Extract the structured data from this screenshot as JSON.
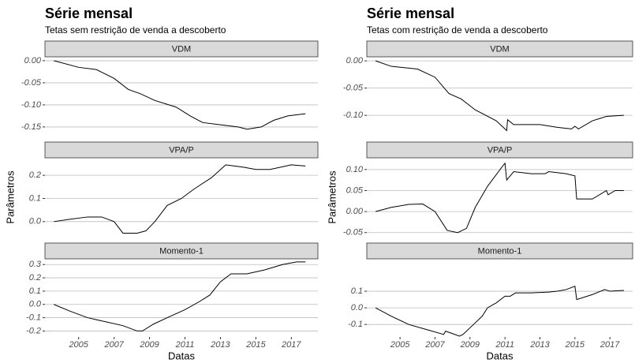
{
  "chart_data": [
    {
      "type": "line",
      "title": "Série mensal",
      "subtitle": "Tetas sem restrição de venda a descoberto",
      "xlabel": "Datas",
      "ylabel": "Parâmetros",
      "color": "#000000",
      "grid": true,
      "xlim": [
        2003.1,
        2018.5
      ],
      "xticks": [
        2005,
        2007,
        2009,
        2011,
        2013,
        2015,
        2017
      ],
      "facets": [
        {
          "title": "VDM",
          "ylim": [
            -0.168,
            0.007
          ],
          "yticks": [
            {
              "value": 0,
              "label": "0.00"
            },
            -0.05,
            {
              "value": -0.1,
              "label": "-0.10"
            },
            -0.15
          ],
          "x": [
            2003.6,
            2005,
            2006,
            2007,
            2007.8,
            2008.5,
            2009.3,
            2010.5,
            2011.3,
            2012,
            2013,
            2014,
            2014.5,
            2015.3,
            2016,
            2016.8,
            2017.8
          ],
          "values": [
            0,
            -0.015,
            -0.02,
            -0.04,
            -0.065,
            -0.075,
            -0.09,
            -0.105,
            -0.125,
            -0.14,
            -0.145,
            -0.15,
            -0.155,
            -0.15,
            -0.135,
            -0.125,
            -0.12
          ]
        },
        {
          "title": "VPA/P",
          "ylim": [
            -0.062,
            0.272
          ],
          "yticks": [
            {
              "value": 0,
              "label": "0.0"
            },
            0.1,
            0.2
          ],
          "x": [
            2003.6,
            2004.5,
            2005.5,
            2006.3,
            2007,
            2007.5,
            2008.3,
            2008.8,
            2009.3,
            2010,
            2010.8,
            2011.5,
            2012.5,
            2013.3,
            2014.3,
            2015,
            2015.8,
            2017,
            2017.8
          ],
          "values": [
            0,
            0.01,
            0.02,
            0.02,
            0,
            -0.05,
            -0.05,
            -0.04,
            0,
            0.07,
            0.1,
            0.14,
            0.19,
            0.245,
            0.235,
            0.225,
            0.225,
            0.245,
            0.24
          ]
        },
        {
          "title": "Momento-1",
          "ylim": [
            -0.245,
            0.337
          ],
          "yticks": [
            -0.2,
            -0.1,
            {
              "value": 0,
              "label": "0.0"
            },
            0.1,
            0.2,
            0.3
          ],
          "x": [
            2003.6,
            2004.5,
            2005.5,
            2006.5,
            2007.5,
            2008.3,
            2008.6,
            2009.2,
            2010,
            2011,
            2011.8,
            2012.4,
            2013,
            2013.6,
            2014.5,
            2015.5,
            2016.5,
            2017.3,
            2017.8
          ],
          "values": [
            0,
            -0.05,
            -0.1,
            -0.13,
            -0.16,
            -0.2,
            -0.2,
            -0.15,
            -0.1,
            -0.04,
            0.02,
            0.07,
            0.17,
            0.23,
            0.23,
            0.26,
            0.3,
            0.32,
            0.32
          ]
        }
      ]
    },
    {
      "type": "line",
      "title": "Série mensal",
      "subtitle": "Tetas com restrição de venda a descoberto",
      "xlabel": "Datas",
      "ylabel": "Parâmetros",
      "color": "#000000",
      "grid": true,
      "xlim": [
        2003.1,
        2018.3
      ],
      "xticks": [
        2005,
        2007,
        2009,
        2011,
        2013,
        2015,
        2017
      ],
      "facets": [
        {
          "title": "VDM",
          "ylim": [
            -0.136,
            0.006
          ],
          "yticks": [
            {
              "value": 0,
              "label": "0.00"
            },
            -0.05,
            {
              "value": -0.1,
              "label": "-0.10"
            }
          ],
          "x": [
            2003.6,
            2004.5,
            2006,
            2007,
            2007.8,
            2008.5,
            2009.3,
            2010.5,
            2011,
            2011.1,
            2011.15,
            2011.5,
            2013,
            2014,
            2014.8,
            2015,
            2015.2,
            2016,
            2016.8,
            2017.8
          ],
          "values": [
            0,
            -0.01,
            -0.015,
            -0.03,
            -0.06,
            -0.07,
            -0.09,
            -0.11,
            -0.125,
            -0.128,
            -0.108,
            -0.117,
            -0.117,
            -0.122,
            -0.125,
            -0.12,
            -0.125,
            -0.11,
            -0.102,
            -0.1
          ]
        },
        {
          "title": "VPA/P",
          "ylim": [
            -0.058,
            0.126
          ],
          "yticks": [
            -0.05,
            {
              "value": 0,
              "label": "0.00"
            },
            0.05,
            {
              "value": 0.1,
              "label": "0.10"
            }
          ],
          "x": [
            2003.6,
            2004.5,
            2005.5,
            2006.3,
            2007,
            2007.7,
            2008.3,
            2008.8,
            2009.3,
            2010,
            2010.9,
            2011,
            2011.1,
            2011.5,
            2012.5,
            2013.3,
            2013.5,
            2014.5,
            2015,
            2015.1,
            2016,
            2016.8,
            2016.9,
            2017.3,
            2017.8
          ],
          "values": [
            0,
            0.01,
            0.017,
            0.018,
            0,
            -0.045,
            -0.05,
            -0.04,
            0.01,
            0.06,
            0.11,
            0.115,
            0.075,
            0.095,
            0.09,
            0.09,
            0.095,
            0.09,
            0.085,
            0.03,
            0.03,
            0.05,
            0.04,
            0.05,
            0.05
          ]
        },
        {
          "title": "Momento-1",
          "ylim": [
            -0.175,
            0.29
          ],
          "yticks": [
            -0.1,
            {
              "value": 0,
              "label": "0.0"
            },
            0.1
          ],
          "x": [
            2003.6,
            2004.5,
            2005.5,
            2006.5,
            2007.5,
            2007.6,
            2008,
            2008.4,
            2008.6,
            2009.2,
            2009.7,
            2010,
            2010.5,
            2011,
            2011.3,
            2011.6,
            2012.5,
            2013.5,
            2014,
            2014.5,
            2015,
            2015.1,
            2016,
            2016.7,
            2017,
            2017.8
          ],
          "values": [
            0,
            -0.05,
            -0.1,
            -0.13,
            -0.16,
            -0.14,
            -0.155,
            -0.17,
            -0.16,
            -0.1,
            -0.05,
            0,
            0.03,
            0.07,
            0.07,
            0.09,
            0.09,
            0.095,
            0.1,
            0.11,
            0.13,
            0.05,
            0.08,
            0.11,
            0.1,
            0.105
          ]
        }
      ]
    }
  ]
}
